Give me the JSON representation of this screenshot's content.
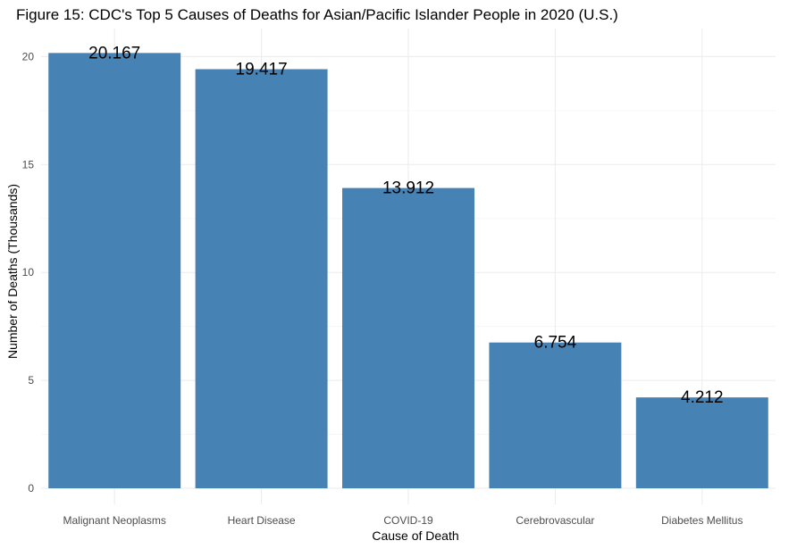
{
  "chart_data": {
    "type": "bar",
    "title": "Figure 15: CDC's Top 5 Causes of Deaths for Asian/Pacific Islander People in 2020 (U.S.)",
    "xlabel": "Cause of Death",
    "ylabel": "Number of Deaths (Thousands)",
    "categories": [
      "Malignant Neoplasms",
      "Heart Disease",
      "COVID-19",
      "Cerebrovascular",
      "Diabetes Mellitus"
    ],
    "values": [
      20.167,
      19.417,
      13.912,
      6.754,
      4.212
    ],
    "value_labels": [
      "20.167",
      "19.417",
      "13.912",
      "6.754",
      "4.212"
    ],
    "ylim": [
      0,
      21.2
    ],
    "yticks": [
      0,
      5,
      10,
      15,
      20
    ],
    "ytick_labels": [
      "0",
      "5",
      "10",
      "15",
      "20"
    ],
    "grid": true,
    "bar_color": "#4682B4",
    "legend": "none"
  }
}
